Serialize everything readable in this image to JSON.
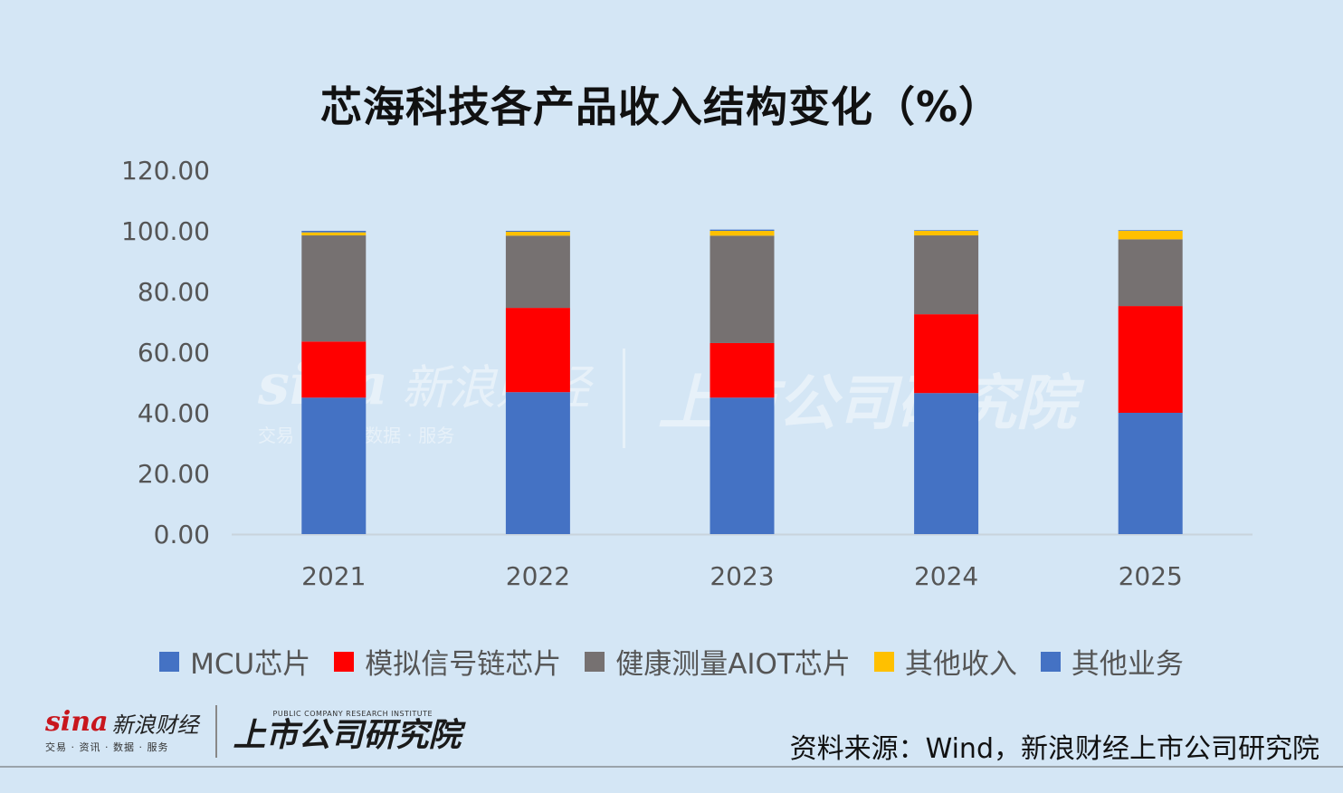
{
  "chart_data": {
    "type": "bar",
    "stacked": true,
    "title": "芯海科技各产品收入结构变化（%）",
    "categories": [
      "2021",
      "2022",
      "2023",
      "2024",
      "2025"
    ],
    "ylim": [
      0,
      120
    ],
    "yticks": [
      "0.00",
      "20.00",
      "40.00",
      "60.00",
      "80.00",
      "100.00",
      "120.00"
    ],
    "grid": false,
    "legend_position": "bottom",
    "series": [
      {
        "name": "MCU芯片",
        "color": "#4472c4",
        "values": [
          45.0,
          46.8,
          45.0,
          46.5,
          40.0
        ]
      },
      {
        "name": "模拟信号链芯片",
        "color": "#ff0000",
        "values": [
          18.5,
          27.8,
          18.0,
          26.0,
          35.2
        ]
      },
      {
        "name": "健康测量AIOT芯片",
        "color": "#767171",
        "values": [
          35.0,
          23.8,
          35.4,
          26.0,
          22.0
        ]
      },
      {
        "name": "其他收入",
        "color": "#ffc000",
        "values": [
          1.0,
          1.3,
          1.6,
          1.5,
          2.8
        ]
      },
      {
        "name": "其他业务",
        "color": "#4472c4",
        "values": [
          0.5,
          0.3,
          0.4,
          0.2,
          0.2
        ]
      }
    ]
  },
  "watermark": {
    "sina_word": "sina",
    "sina_cn": "新浪财经",
    "sina_sub": "交易 · 资讯 · 数据 · 服务",
    "institute_cn": "上市公司研究院"
  },
  "footer": {
    "sina_word": "sina",
    "sina_cn": "新浪财经",
    "sina_sub": "交易 · 资讯 · 数据 · 服务",
    "institute_en": "PUBLIC COMPANY RESEARCH INSTITUTE",
    "institute_cn": "上市公司研究院",
    "source": "资料来源：Wind，新浪财经上市公司研究院"
  }
}
